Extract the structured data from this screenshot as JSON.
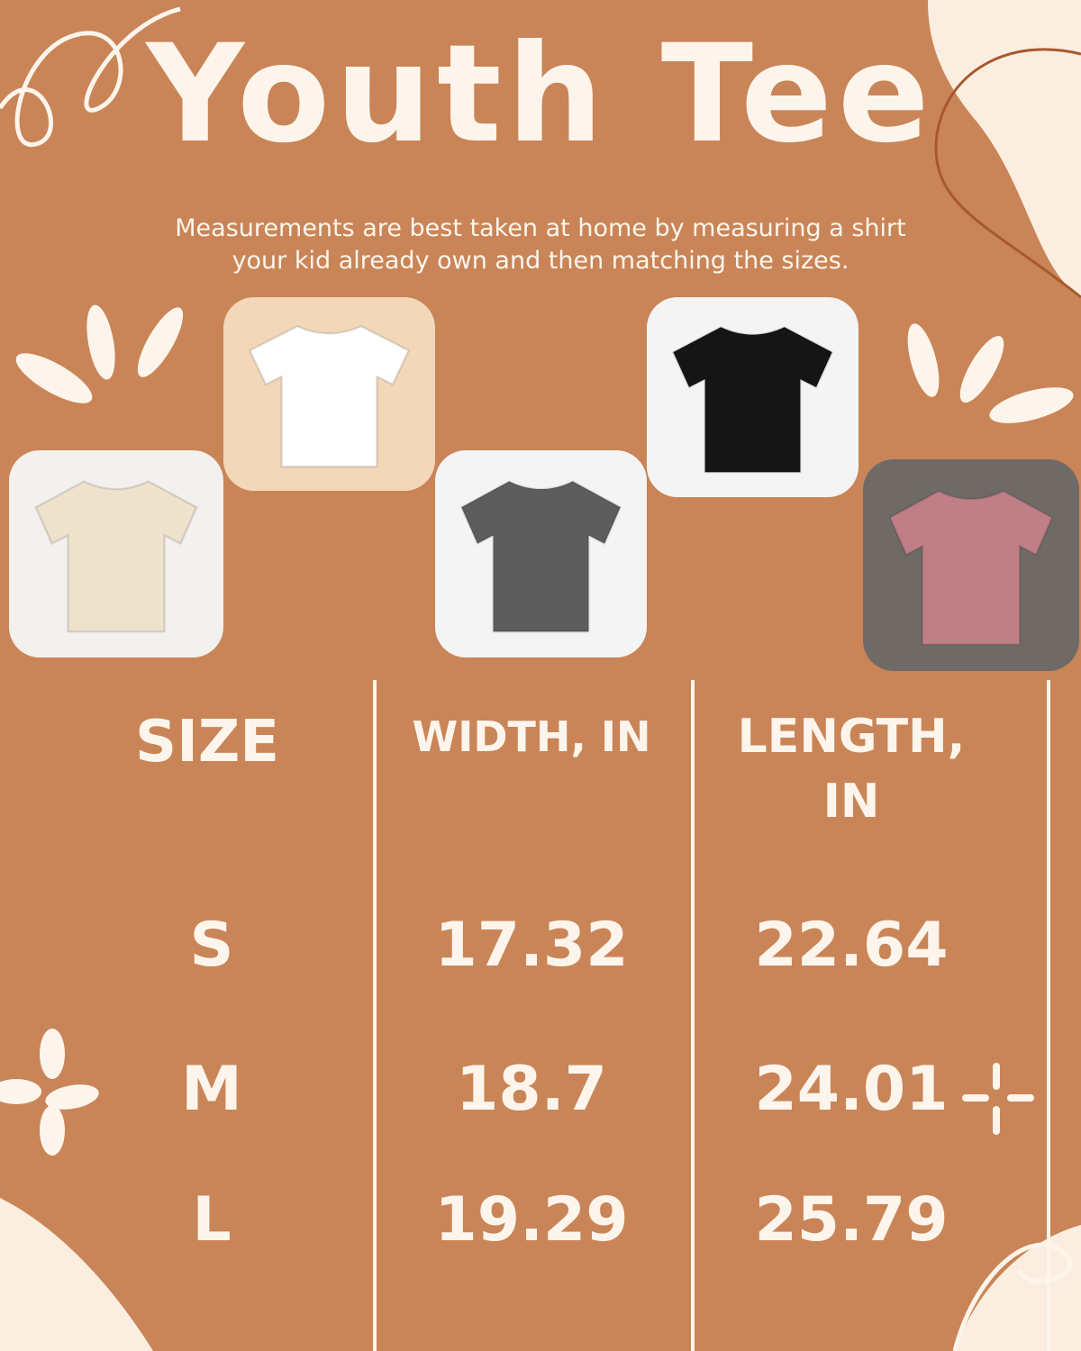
{
  "title": "Youth Tee",
  "subtitle": {
    "line1": "Measurements are best taken at home by measuring a shirt",
    "line2": "your kid already own and then matching the sizes."
  },
  "colors": {
    "background": "#c98557",
    "cream": "#fdf5ec",
    "accent_line": "#a8582d"
  },
  "photos": [
    {
      "name": "beige-tee",
      "shirt_color": "#efe2cc",
      "bg": "#f3f1ee"
    },
    {
      "name": "white-tee",
      "shirt_color": "#ffffff",
      "bg": "#f2d7b8"
    },
    {
      "name": "gray-tee",
      "shirt_color": "#5d5d5d",
      "bg": "#f4f4f4"
    },
    {
      "name": "black-tee",
      "shirt_color": "#151515",
      "bg": "#f4f4f4"
    },
    {
      "name": "pink-tee",
      "shirt_color": "#c07f86",
      "bg": "#6f6a66"
    }
  ],
  "table": {
    "headers": {
      "size": "SIZE",
      "width": "WIDTH, IN",
      "length_line1": "LENGTH,",
      "length_line2": "IN"
    },
    "rows": [
      {
        "size": "S",
        "width": "17.32",
        "length": "22.64"
      },
      {
        "size": "M",
        "width": "18.7",
        "length": "24.01"
      },
      {
        "size": "L",
        "width": "19.29",
        "length": "25.79"
      }
    ]
  }
}
